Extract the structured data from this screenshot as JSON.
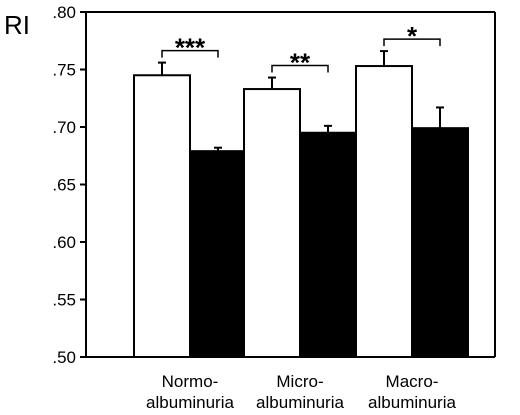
{
  "chart_data": {
    "type": "bar",
    "ylabel": "RI",
    "ylim": [
      0.5,
      0.8
    ],
    "yticks": [
      0.5,
      0.55,
      0.6,
      0.65,
      0.7,
      0.75,
      0.8
    ],
    "ytick_labels": [
      ".50",
      ".55",
      ".60",
      ".65",
      ".70",
      ".75",
      ".80"
    ],
    "categories": [
      {
        "line1": "Normo-",
        "line2": "albuminuria"
      },
      {
        "line1": "Micro-",
        "line2": "albuminuria"
      },
      {
        "line1": "Macro-",
        "line2": "albuminuria"
      }
    ],
    "series": [
      {
        "fill": "#ffffff",
        "values": [
          0.745,
          0.733,
          0.753
        ],
        "errors": [
          0.011,
          0.01,
          0.013
        ]
      },
      {
        "fill": "#000000",
        "values": [
          0.679,
          0.695,
          0.699
        ],
        "errors": [
          0.003,
          0.006,
          0.018
        ]
      }
    ],
    "significance": [
      "***",
      "**",
      "*"
    ],
    "grid": false,
    "legend": "none"
  }
}
